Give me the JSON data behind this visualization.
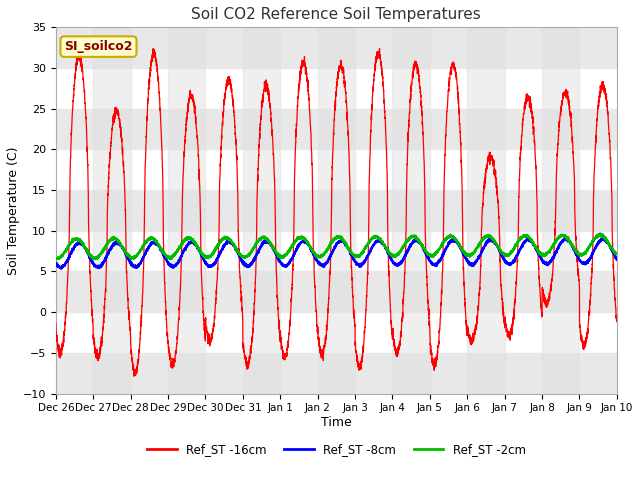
{
  "title": "Soil CO2 Reference Soil Temperatures",
  "xlabel": "Time",
  "ylabel": "Soil Temperature (C)",
  "ylim": [
    -10,
    35
  ],
  "days": 15,
  "background_color": "#ffffff",
  "plot_bg_color": "#ffffff",
  "hband_color": "#e8e8e8",
  "vstripe_color": "#e0e0e0",
  "legend_label": "SI_soilco2",
  "series_labels": [
    "Ref_ST -16cm",
    "Ref_ST -8cm",
    "Ref_ST -2cm"
  ],
  "series_colors": [
    "#ff0000",
    "#0000ff",
    "#00bb00"
  ],
  "tick_labels": [
    "Dec 26",
    "Dec 27",
    "Dec 28",
    "Dec 29",
    "Dec 30",
    "Dec 31",
    "Jan 1",
    "Jan 2",
    "Jan 3",
    "Jan 4",
    "Jan 5",
    "Jan 6",
    "Jan 7",
    "Jan 8",
    "Jan 9",
    "Jan 10"
  ],
  "yticks": [
    -10,
    -5,
    0,
    5,
    10,
    15,
    20,
    25,
    30,
    35
  ],
  "red_peaks": [
    31.5,
    24.8,
    31.8,
    26.7,
    28.5,
    27.8,
    30.8,
    30.4,
    31.8,
    30.5,
    30.5,
    19.2,
    26.5,
    27.0
  ],
  "red_troughs": [
    -5.0,
    -5.5,
    -7.5,
    -6.5,
    -3.5,
    -6.5,
    -5.5,
    -5.2,
    -6.8,
    -5.0,
    -6.5,
    -3.5,
    -3.0,
    1.0
  ],
  "peak_phase": 0.62,
  "trough_phase": 0.18,
  "blue_base": 7.0,
  "blue_amp": 1.5,
  "blue_phase": 0.38,
  "green_base": 7.8,
  "green_amp": 1.2,
  "green_phase": 0.3,
  "red_linewidth": 0.9,
  "blue_linewidth": 1.5,
  "green_linewidth": 1.5
}
